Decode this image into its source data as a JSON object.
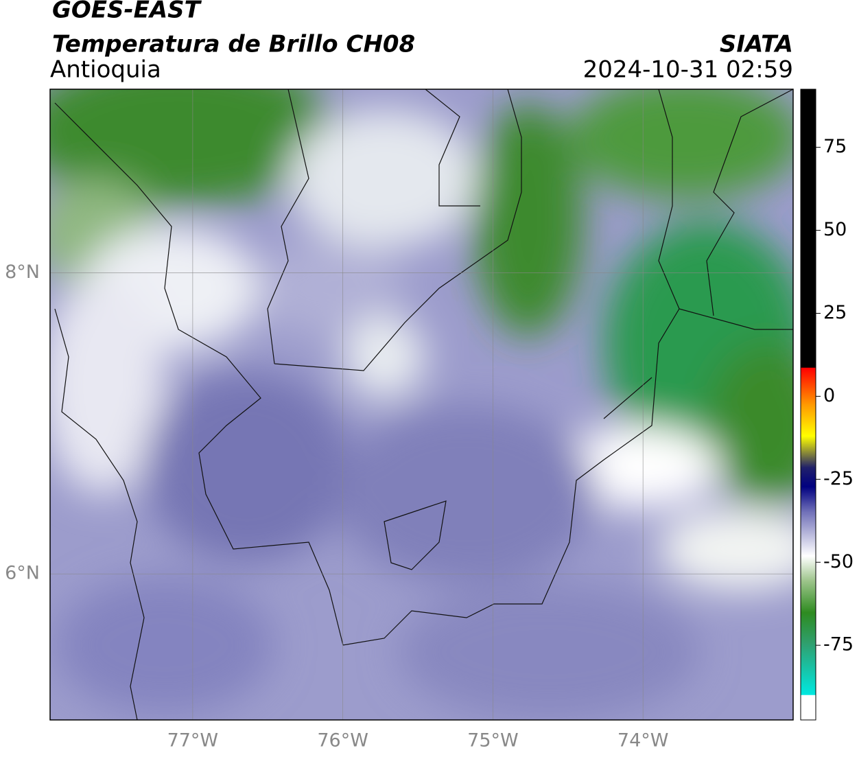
{
  "header": {
    "title": "GOES-EAST",
    "subtitle": "Temperatura de Brillo CH08",
    "region": "Antioquia",
    "source": "SIATA",
    "datetime": "2024-10-31 02:59"
  },
  "map": {
    "xlim": [
      -77.95,
      -73.0
    ],
    "ylim": [
      5.03,
      9.22
    ],
    "xticks": [
      {
        "value": -77,
        "label": "77°W"
      },
      {
        "value": -76,
        "label": "76°W"
      },
      {
        "value": -75,
        "label": "75°W"
      },
      {
        "value": -74,
        "label": "74°W"
      }
    ],
    "yticks": [
      {
        "value": 6,
        "label": "6°N"
      },
      {
        "value": 8,
        "label": "8°N"
      }
    ],
    "grid": true
  },
  "colorbar": {
    "lim": [
      -97.5,
      92.5
    ],
    "ticks": [
      75,
      50,
      25,
      0,
      -25,
      -50,
      -75
    ]
  }
}
